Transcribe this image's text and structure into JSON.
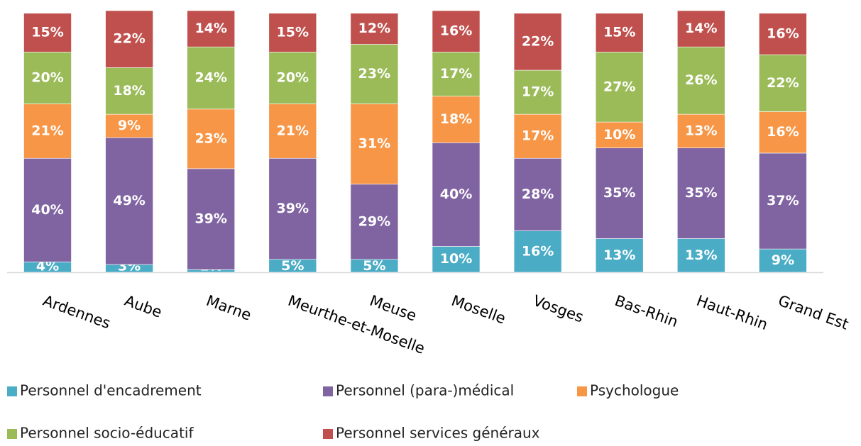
{
  "chart_data": {
    "type": "stacked_bar",
    "categories": [
      "Ardennes",
      "Aube",
      "Marne",
      "Meurthe-et-Moselle",
      "Meuse",
      "Moselle",
      "Vosges",
      "Bas-Rhin",
      "Haut-Rhin",
      "Grand Est"
    ],
    "series": [
      {
        "name": "Personnel d'encadrement",
        "color": "#4bacc6",
        "values": [
          4,
          3,
          1,
          5,
          5,
          10,
          16,
          13,
          13,
          9
        ],
        "value_labels": [
          "4%",
          "3%",
          "1%",
          "5%",
          "5%",
          "10%",
          "16%",
          "13%",
          "13%",
          "9%"
        ]
      },
      {
        "name": "Personnel (para-)médical",
        "color": "#8064a2",
        "values": [
          40,
          49,
          39,
          39,
          29,
          40,
          28,
          35,
          35,
          37
        ],
        "value_labels": [
          "40%",
          "49%",
          "39%",
          "39%",
          "29%",
          "40%",
          "28%",
          "35%",
          "35%",
          "37%"
        ]
      },
      {
        "name": "Psychologue",
        "color": "#f79646",
        "values": [
          21,
          9,
          23,
          21,
          31,
          18,
          17,
          10,
          13,
          16
        ],
        "value_labels": [
          "21%",
          "9%",
          "23%",
          "21%",
          "31%",
          "18%",
          "17%",
          "10%",
          "13%",
          "16%"
        ]
      },
      {
        "name": "Personnel socio-éducatif",
        "color": "#9bbb59",
        "values": [
          20,
          18,
          24,
          20,
          23,
          17,
          17,
          27,
          26,
          22
        ],
        "value_labels": [
          "20%",
          "18%",
          "24%",
          "20%",
          "23%",
          "17%",
          "17%",
          "27%",
          "26%",
          "22%"
        ]
      },
      {
        "name": "Personnel services généraux",
        "color": "#c0504d",
        "values": [
          15,
          22,
          14,
          15,
          12,
          16,
          22,
          15,
          14,
          16
        ],
        "value_labels": [
          "15%",
          "22%",
          "14%",
          "15%",
          "12%",
          "16%",
          "22%",
          "15%",
          "14%",
          "16%"
        ]
      }
    ]
  }
}
